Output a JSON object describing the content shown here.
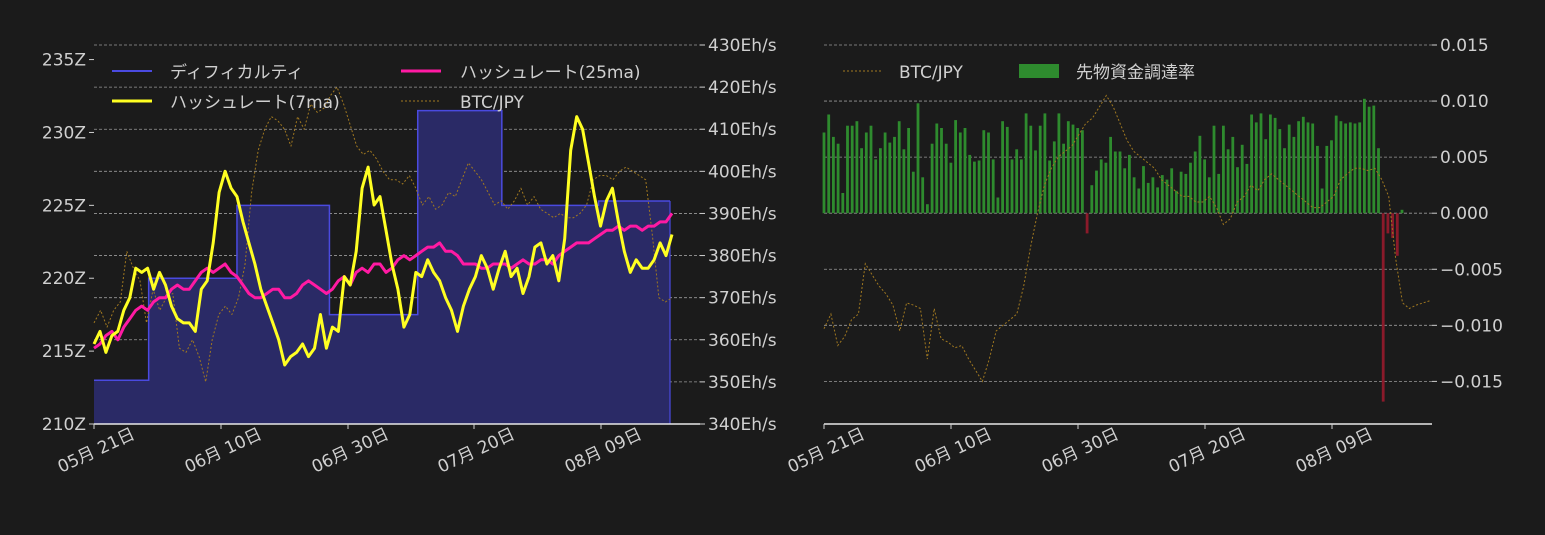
{
  "colors": {
    "background": "#1b1b1b",
    "text": "#d0d0d0",
    "grid": "#9a9a9a",
    "difficulty_line": "#4a4ae0",
    "difficulty_fill": "#2a2a66",
    "hashrate_7ma": "#ffff22",
    "hashrate_25ma": "#ff1aa3",
    "btc_jpy": "#a07820",
    "funding_pos": "#2e8b2e",
    "funding_neg": "#8b1a2a"
  },
  "chart_data": [
    {
      "type": "line",
      "x_ticks": [
        "05月 21日",
        "06月 10日",
        "06月 30日",
        "07月 20日",
        "08月 09日"
      ],
      "left_axis": {
        "ticks": [
          "210Z",
          "215Z",
          "220Z",
          "225Z",
          "230Z",
          "235Z"
        ],
        "ylim": [
          210,
          236
        ]
      },
      "right_axis": {
        "ticks": [
          "340Eh/s",
          "350Eh/s",
          "360Eh/s",
          "370Eh/s",
          "380Eh/s",
          "390Eh/s",
          "400Eh/s",
          "410Eh/s",
          "420Eh/s",
          "430Eh/s"
        ],
        "ylim": [
          340,
          430
        ]
      },
      "grid": true,
      "legend": [
        "ディフィカルティ",
        "ハッシュレート(25ma)",
        "ハッシュレート(7ma)",
        "BTC/JPY"
      ],
      "difficulty": {
        "name": "ディフィカルティ",
        "steps": [
          [
            0,
            213
          ],
          [
            13,
            220
          ],
          [
            34,
            225
          ],
          [
            56,
            217.5
          ],
          [
            77,
            231.5
          ],
          [
            97,
            225
          ],
          [
            120,
            225.3
          ],
          [
            137,
            225.3
          ]
        ]
      },
      "hashrate_7ma": {
        "name": "ハッシュレート(7ma)",
        "values": [
          359,
          362,
          357,
          361,
          362,
          367,
          370,
          377,
          376,
          377,
          372,
          376,
          373,
          368,
          365,
          364,
          364,
          362,
          372,
          374,
          383,
          395,
          400,
          396,
          394,
          388,
          383,
          378,
          372,
          368,
          364,
          360,
          354,
          356,
          357,
          359,
          356,
          358,
          366,
          358,
          363,
          362,
          375,
          373,
          381,
          396,
          401,
          392,
          394,
          386,
          378,
          372,
          363,
          366,
          376,
          375,
          379,
          376,
          374,
          370,
          367,
          362,
          368,
          372,
          375,
          380,
          377,
          372,
          377,
          381,
          375,
          377,
          371,
          375,
          382,
          383,
          378,
          380,
          374,
          384,
          405,
          413,
          410,
          402,
          394,
          387,
          393,
          396,
          388,
          381,
          376,
          379,
          377,
          377,
          379,
          383,
          380,
          385
        ]
      },
      "hashrate_25ma": {
        "name": "ハッシュレート(25ma)",
        "values": [
          358,
          359,
          361,
          362,
          360,
          363,
          365,
          367,
          368,
          367,
          369,
          370,
          370,
          372,
          373,
          372,
          372,
          374,
          376,
          377,
          376,
          377,
          378,
          376,
          375,
          373,
          371,
          370,
          370,
          371,
          372,
          372,
          370,
          370,
          371,
          373,
          374,
          373,
          372,
          371,
          372,
          374,
          375,
          373,
          376,
          377,
          376,
          378,
          378,
          376,
          377,
          379,
          380,
          379,
          380,
          381,
          382,
          382,
          383,
          381,
          381,
          380,
          378,
          378,
          378,
          377,
          377,
          378,
          378,
          378,
          377,
          378,
          379,
          378,
          378,
          379,
          379,
          378,
          380,
          381,
          382,
          383,
          383,
          383,
          384,
          385,
          386,
          386,
          387,
          386,
          387,
          387,
          386,
          387,
          387,
          388,
          388,
          390
        ]
      },
      "btc_jpy": {
        "name": "BTC/JPY",
        "values": [
          364,
          367,
          363,
          367,
          369,
          381,
          377,
          374,
          364,
          372,
          367,
          370,
          371,
          358,
          357,
          360,
          356,
          350,
          360,
          366,
          368,
          366,
          370,
          378,
          395,
          405,
          410,
          413,
          412,
          410,
          406,
          413,
          410,
          416,
          414,
          415,
          418,
          420,
          416,
          411,
          406,
          404,
          405,
          403,
          400,
          398,
          398,
          397,
          399,
          396,
          392,
          394,
          391,
          392,
          395,
          394,
          398,
          402,
          400,
          398,
          395,
          392,
          393,
          391,
          393,
          396,
          392,
          394,
          391,
          390,
          389,
          390,
          389,
          389,
          390,
          392,
          398,
          399,
          399,
          398,
          400,
          401,
          400,
          399,
          398,
          385,
          370,
          369,
          370
        ]
      }
    },
    {
      "type": "bar",
      "x_ticks": [
        "05月 21日",
        "06月 10日",
        "06月 30日",
        "07月 20日",
        "08月 09日"
      ],
      "right_axis": {
        "ticks": [
          "−0.015",
          "−0.010",
          "−0.005",
          "0.000",
          "0.005",
          "0.010",
          "0.015"
        ],
        "ylim": [
          -0.0188,
          0.015
        ]
      },
      "grid": true,
      "legend": [
        "BTC/JPY",
        "先物資金調達率"
      ],
      "funding_rate": {
        "name": "先物資金調達率",
        "values": [
          0.0072,
          0.0088,
          0.0068,
          0.0062,
          0.0018,
          0.0078,
          0.0078,
          0.0082,
          0.0058,
          0.0072,
          0.0078,
          0.0048,
          0.0058,
          0.0072,
          0.0063,
          0.0068,
          0.0082,
          0.0057,
          0.0076,
          0.0037,
          0.0098,
          0.0032,
          0.0008,
          0.0062,
          0.008,
          0.0076,
          0.0062,
          0.0045,
          0.0083,
          0.0072,
          0.0076,
          0.0052,
          0.0046,
          0.0047,
          0.0074,
          0.0072,
          0.0048,
          0.0014,
          0.0082,
          0.0077,
          0.0048,
          0.0057,
          0.0048,
          0.0089,
          0.0078,
          0.0056,
          0.0078,
          0.0089,
          0.0047,
          0.0064,
          0.0089,
          0.0062,
          0.0082,
          0.0079,
          0.0076,
          0.0074,
          -0.0018,
          0.0025,
          0.0038,
          0.0048,
          0.0045,
          0.0068,
          0.0055,
          0.0055,
          0.004,
          0.0052,
          0.0032,
          0.0022,
          0.0042,
          0.0027,
          0.0032,
          0.0023,
          0.0034,
          0.003,
          0.004,
          0.002,
          0.0037,
          0.0035,
          0.0045,
          0.0055,
          0.0069,
          0.0048,
          0.0032,
          0.0078,
          0.0035,
          0.0078,
          0.0057,
          0.0068,
          0.0041,
          0.0061,
          0.0044,
          0.0088,
          0.0081,
          0.0089,
          0.0066,
          0.0088,
          0.0085,
          0.0075,
          0.0058,
          0.0079,
          0.0068,
          0.0082,
          0.0086,
          0.0081,
          0.008,
          0.006,
          0.0022,
          0.006,
          0.0065,
          0.0087,
          0.0082,
          0.008,
          0.0081,
          0.008,
          0.0081,
          0.0102,
          0.0095,
          0.0096,
          0.0058,
          -0.0168,
          -0.0018,
          -0.0022,
          -0.0038,
          0.0003
        ],
        "positive_color": "#2e8b2e",
        "negative_color": "#8b1a2a"
      },
      "btc_jpy": {
        "name": "BTC/JPY",
        "values": [
          -0.0103,
          -0.009,
          -0.0118,
          -0.011,
          -0.0095,
          -0.009,
          -0.0045,
          -0.0055,
          -0.0065,
          -0.0072,
          -0.0082,
          -0.0105,
          -0.008,
          -0.0082,
          -0.0085,
          -0.013,
          -0.0085,
          -0.0112,
          -0.0115,
          -0.012,
          -0.0118,
          -0.013,
          -0.014,
          -0.015,
          -0.013,
          -0.0105,
          -0.01,
          -0.0095,
          -0.009,
          -0.0065,
          -0.003,
          0.0,
          0.0025,
          0.004,
          0.005,
          0.0055,
          0.006,
          0.007,
          0.008,
          0.0085,
          0.0095,
          0.0105,
          0.0095,
          0.008,
          0.0065,
          0.0055,
          0.005,
          0.0045,
          0.004,
          0.003,
          0.0025,
          0.002,
          0.0015,
          0.0015,
          0.001,
          0.001,
          0.0015,
          0.0005,
          -0.001,
          -0.0005,
          0.001,
          0.0015,
          0.0025,
          0.002,
          0.003,
          0.0035,
          0.003,
          0.0025,
          0.002,
          0.0015,
          0.001,
          0.0005,
          0.0005,
          0.001,
          0.0015,
          0.003,
          0.0035,
          0.004,
          0.004,
          0.0038,
          0.004,
          0.003,
          0.0015,
          -0.004,
          -0.008,
          -0.0085,
          -0.0082,
          -0.008,
          -0.0078
        ]
      }
    }
  ]
}
